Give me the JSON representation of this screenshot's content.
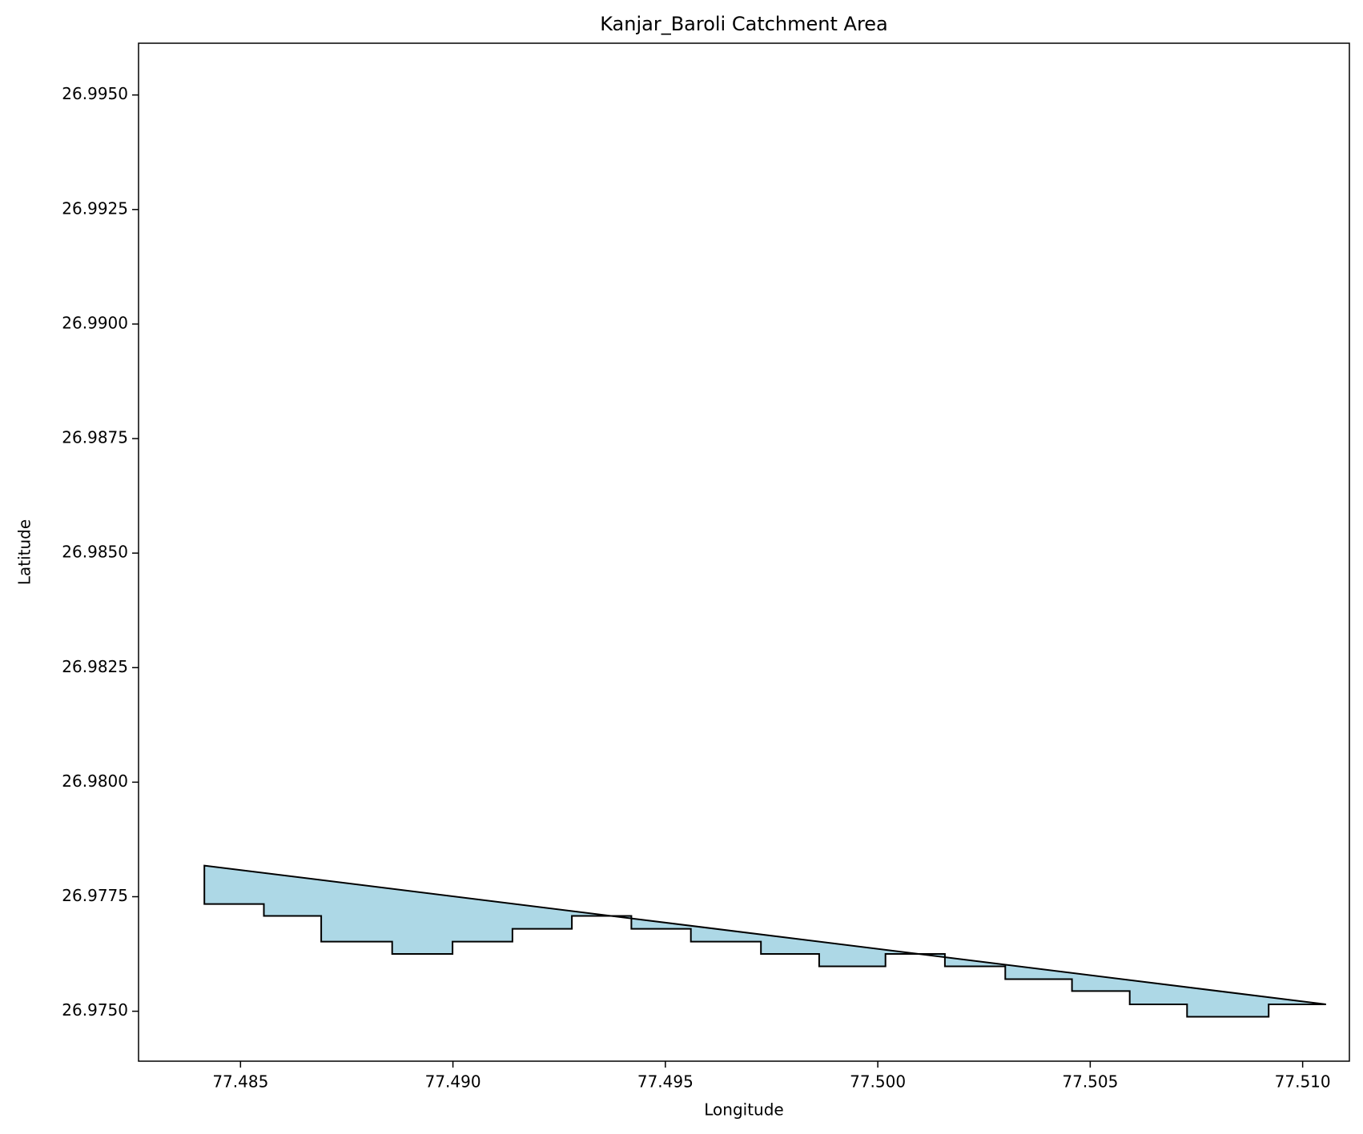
{
  "chart_data": {
    "type": "map",
    "title": "Kanjar_Baroli Catchment Area",
    "xlabel": "Longitude",
    "ylabel": "Latitude",
    "xlim": [
      77.4826,
      77.5111
    ],
    "ylim": [
      26.97391,
      26.99613
    ],
    "xticks": [
      "77.485",
      "77.490",
      "77.495",
      "77.500",
      "77.505",
      "77.510"
    ],
    "yticks": [
      "26.9750",
      "26.9775",
      "26.9800",
      "26.9825",
      "26.9850",
      "26.9875",
      "26.9900",
      "26.9925",
      "26.9950"
    ],
    "grid": false,
    "fill_color": "#add8e6",
    "edge_color": "#000000",
    "polygon": [
      [
        77.48415,
        26.97818
      ],
      [
        77.48415,
        26.97734
      ],
      [
        77.48555,
        26.97734
      ],
      [
        77.48555,
        26.97708
      ],
      [
        77.4869,
        26.97708
      ],
      [
        77.4869,
        26.97652
      ],
      [
        77.48857,
        26.97652
      ],
      [
        77.48857,
        26.97625
      ],
      [
        77.48999,
        26.97625
      ],
      [
        77.48999,
        26.97652
      ],
      [
        77.4914,
        26.97652
      ],
      [
        77.4914,
        26.9768
      ],
      [
        77.4928,
        26.9768
      ],
      [
        77.4928,
        26.97708
      ],
      [
        77.4942,
        26.97708
      ],
      [
        77.4942,
        26.9768
      ],
      [
        77.4956,
        26.9768
      ],
      [
        77.4956,
        26.97652
      ],
      [
        77.49725,
        26.97652
      ],
      [
        77.49725,
        26.97625
      ],
      [
        77.49862,
        26.97625
      ],
      [
        77.49862,
        26.97598
      ],
      [
        77.50018,
        26.97598
      ],
      [
        77.50018,
        26.97625
      ],
      [
        77.50158,
        26.97625
      ],
      [
        77.50158,
        26.97598
      ],
      [
        77.503,
        26.97598
      ],
      [
        77.503,
        26.9757
      ],
      [
        77.50457,
        26.9757
      ],
      [
        77.50457,
        26.97544
      ],
      [
        77.50593,
        26.97544
      ],
      [
        77.50593,
        26.97515
      ],
      [
        77.50728,
        26.97515
      ],
      [
        77.50728,
        26.97488
      ],
      [
        77.5092,
        26.97488
      ],
      [
        77.5092,
        26.97515
      ],
      [
        77.51055,
        26.97515
      ]
    ]
  }
}
